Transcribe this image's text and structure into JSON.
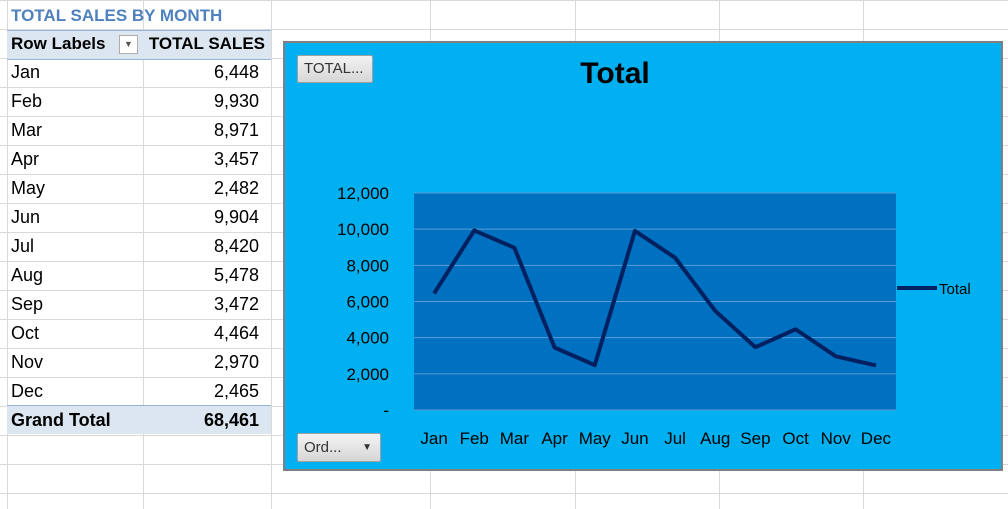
{
  "pivot": {
    "title": "TOTAL SALES BY MONTH",
    "header_row_labels": "Row Labels",
    "header_total_sales": "TOTAL SALES",
    "rows": [
      {
        "label": "Jan",
        "value": "6,448"
      },
      {
        "label": "Feb",
        "value": "9,930"
      },
      {
        "label": "Mar",
        "value": "8,971"
      },
      {
        "label": "Apr",
        "value": "3,457"
      },
      {
        "label": "May",
        "value": "2,482"
      },
      {
        "label": "Jun",
        "value": "9,904"
      },
      {
        "label": "Jul",
        "value": "8,420"
      },
      {
        "label": "Aug",
        "value": "5,478"
      },
      {
        "label": "Sep",
        "value": "3,472"
      },
      {
        "label": "Oct",
        "value": "4,464"
      },
      {
        "label": "Nov",
        "value": "2,970"
      },
      {
        "label": "Dec",
        "value": "2,465"
      }
    ],
    "grand_total_label": "Grand Total",
    "grand_total_value": "68,461"
  },
  "chart": {
    "field_button_total": "TOTAL...",
    "field_button_order": "Ord...",
    "background_color": "#00b0f0",
    "plot_color": "#0070c0",
    "line_color": "#002060"
  },
  "chart_data": {
    "type": "line",
    "title": "Total",
    "categories": [
      "Jan",
      "Feb",
      "Mar",
      "Apr",
      "May",
      "Jun",
      "Jul",
      "Aug",
      "Sep",
      "Oct",
      "Nov",
      "Dec"
    ],
    "series": [
      {
        "name": "Total",
        "values": [
          6448,
          9930,
          8971,
          3457,
          2482,
          9904,
          8420,
          5478,
          3472,
          4464,
          2970,
          2465
        ]
      }
    ],
    "yticks": [
      "-",
      "2,000",
      "4,000",
      "6,000",
      "8,000",
      "10,000",
      "12,000"
    ],
    "ylim": [
      0,
      12000
    ],
    "grid": true,
    "legend": "right"
  }
}
